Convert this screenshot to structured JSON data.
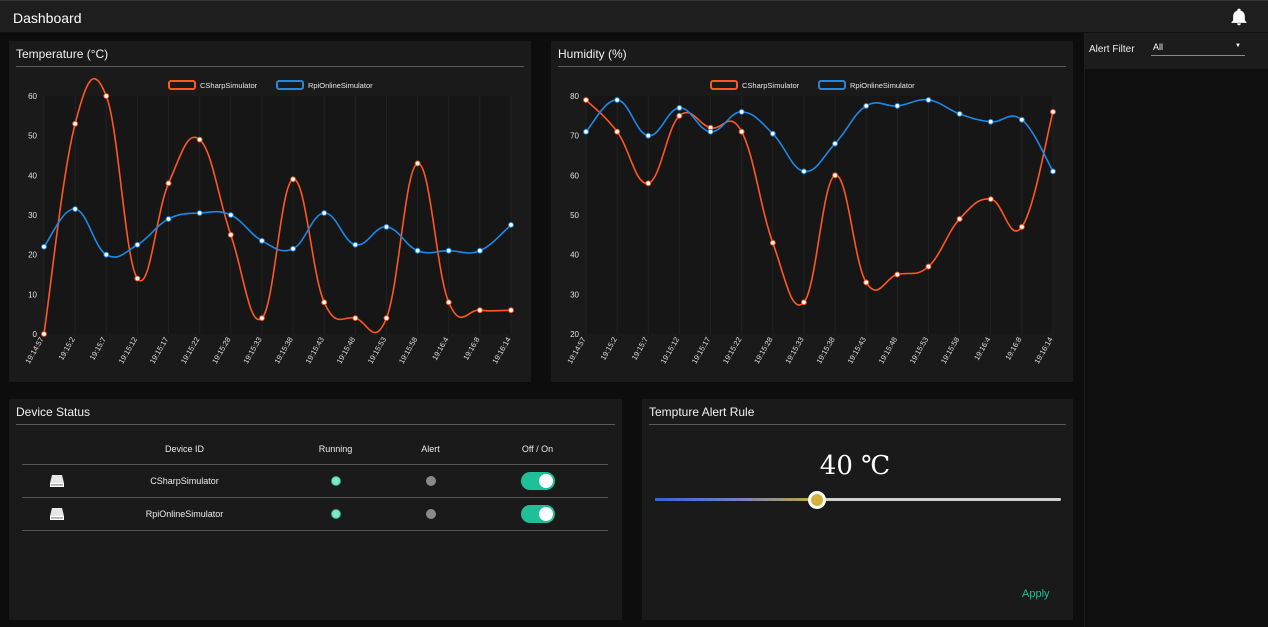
{
  "header": {
    "title": "Dashboard",
    "bell_icon": "bell-icon"
  },
  "sidebar": {
    "filter_label": "Alert Filter",
    "filter_value": "All"
  },
  "colors": {
    "csharp": "#ff5722",
    "rpi": "#1e88e5",
    "accent": "#1fbf9a",
    "slider_thumb": "#d4b13a"
  },
  "chart_data": [
    {
      "type": "line",
      "title": "Temperature (°C)",
      "x": [
        "19:14:57",
        "19:15:2",
        "19:15:7",
        "19:15:12",
        "19:15:17",
        "19:15:22",
        "19:15:28",
        "19:15:33",
        "19:15:38",
        "19:15:43",
        "19:15:48",
        "19:15:53",
        "19:15:58",
        "19:16:4",
        "19:16:8",
        "19:16:14"
      ],
      "ylim": [
        0,
        60
      ],
      "yticks": [
        0,
        10,
        20,
        30,
        40,
        50,
        60
      ],
      "legend": "top-center",
      "series": [
        {
          "name": "CSharpSimulator",
          "color": "#ff5722",
          "values": [
            0,
            53,
            60,
            14,
            38,
            49,
            25,
            4,
            39,
            8,
            4,
            4,
            43,
            8,
            6,
            6
          ]
        },
        {
          "name": "RpiOnlineSimulator",
          "color": "#1e88e5",
          "values": [
            22,
            31.5,
            20,
            22.5,
            29,
            30.5,
            30,
            23.5,
            21.5,
            30.5,
            22.5,
            27,
            21,
            21,
            21,
            27.5
          ]
        }
      ]
    },
    {
      "type": "line",
      "title": "Humidity (%)",
      "x": [
        "19:14:57",
        "19:15:2",
        "19:15:7",
        "19:15:12",
        "19:15:17",
        "19:15:22",
        "19:15:28",
        "19:15:33",
        "19:15:38",
        "19:15:43",
        "19:15:48",
        "19:15:53",
        "19:15:58",
        "19:16:4",
        "19:16:8",
        "19:16:14"
      ],
      "ylim": [
        20,
        80
      ],
      "yticks": [
        20,
        30,
        40,
        50,
        60,
        70,
        80
      ],
      "legend": "top-center",
      "series": [
        {
          "name": "CSharpSimulator",
          "color": "#ff5722",
          "values": [
            79,
            71,
            58,
            75,
            72,
            71,
            43,
            28,
            60,
            33,
            35,
            37,
            49,
            54,
            47,
            76
          ]
        },
        {
          "name": "RpiOnlineSimulator",
          "color": "#1e88e5",
          "values": [
            71,
            79,
            70,
            77,
            71,
            76,
            70.5,
            61,
            68,
            77.5,
            77.5,
            79,
            75.5,
            73.5,
            74,
            61
          ]
        }
      ]
    }
  ],
  "device_status": {
    "title": "Device Status",
    "columns": [
      "Device ID",
      "Running",
      "Alert",
      "Off / On"
    ],
    "rows": [
      {
        "device": "CSharpSimulator",
        "running": true,
        "alert": false,
        "on": true
      },
      {
        "device": "RpiOnlineSimulator",
        "running": true,
        "alert": false,
        "on": true
      }
    ]
  },
  "alert_rule": {
    "title": "Tempture Alert Rule",
    "value_text": "40 ℃",
    "slider_fraction": 0.4,
    "apply_label": "Apply"
  }
}
